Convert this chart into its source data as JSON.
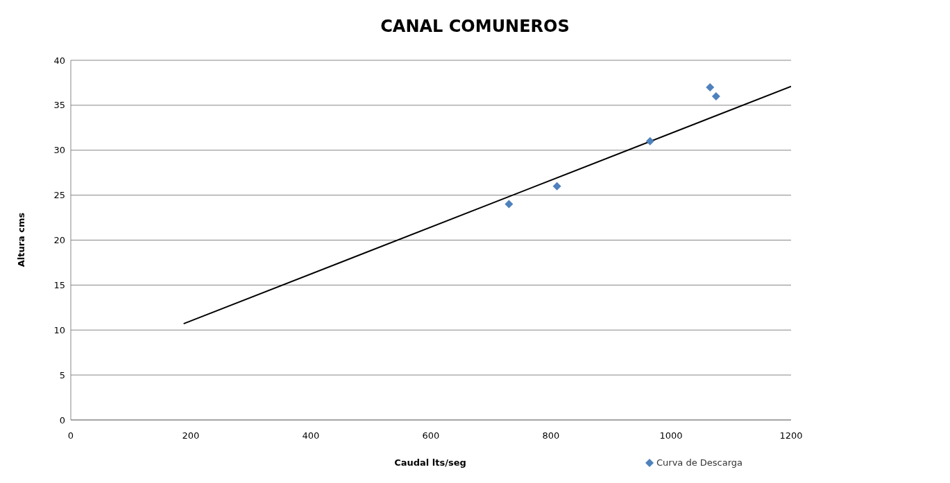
{
  "chart_data": {
    "type": "scatter",
    "title": "CANAL COMUNEROS",
    "xlabel": "Caudal lts/seg",
    "ylabel": "Altura cms",
    "xlim": [
      0,
      1200
    ],
    "xticks": [
      0,
      200,
      400,
      600,
      800,
      1000,
      1200
    ],
    "ylim": [
      0,
      40
    ],
    "yticks": [
      0,
      5,
      10,
      15,
      20,
      25,
      30,
      35,
      40
    ],
    "grid": "y",
    "legend": "bottom right",
    "marker": "diamond",
    "series": [
      {
        "name": "Curva de Descarga",
        "color": "#4f81bd",
        "x": [
          730,
          810,
          965,
          1065,
          1075
        ],
        "values": [
          24,
          26,
          31,
          37,
          36
        ]
      },
      {
        "type": "line",
        "color": "#000000",
        "marker": "none",
        "x": [
          188,
          1200
        ],
        "values": [
          10.7,
          37.1
        ]
      }
    ]
  }
}
